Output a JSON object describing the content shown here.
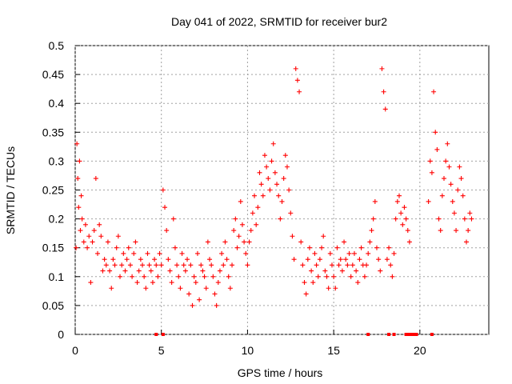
{
  "chart_data": {
    "type": "scatter",
    "title": "Day 041 of 2022, SRMTID for receiver bur2",
    "xlabel": "GPS time / hours",
    "ylabel": "SRMTID / TECUs",
    "xlim": [
      0,
      24
    ],
    "ylim": [
      0,
      0.5
    ],
    "x_ticks": [
      0,
      5,
      10,
      15,
      20
    ],
    "y_ticks": [
      0,
      0.05,
      0.1,
      0.15,
      0.2,
      0.25,
      0.3,
      0.35,
      0.4,
      0.45,
      0.5
    ],
    "x_tick_labels": [
      "0",
      "5",
      "10",
      "15",
      "20"
    ],
    "y_tick_labels": [
      "0",
      "0.05",
      "0.1",
      "0.15",
      "0.2",
      "0.25",
      "0.3",
      "0.35",
      "0.4",
      "0.45",
      "0.5"
    ],
    "grid": true,
    "series": [
      {
        "name": "SRMTID",
        "color": "#ff0000",
        "marker": "plus",
        "points": [
          [
            0.05,
            0.15
          ],
          [
            0.1,
            0.33
          ],
          [
            0.15,
            0.27
          ],
          [
            0.2,
            0.22
          ],
          [
            0.25,
            0.3
          ],
          [
            0.3,
            0.18
          ],
          [
            0.35,
            0.24
          ],
          [
            0.4,
            0.2
          ],
          [
            0.5,
            0.16
          ],
          [
            0.6,
            0.19
          ],
          [
            0.7,
            0.15
          ],
          [
            0.8,
            0.17
          ],
          [
            0.9,
            0.09
          ],
          [
            1.0,
            0.16
          ],
          [
            1.1,
            0.18
          ],
          [
            1.2,
            0.27
          ],
          [
            1.3,
            0.14
          ],
          [
            1.4,
            0.19
          ],
          [
            1.5,
            0.17
          ],
          [
            1.6,
            0.11
          ],
          [
            1.7,
            0.13
          ],
          [
            1.8,
            0.12
          ],
          [
            1.9,
            0.16
          ],
          [
            2.0,
            0.11
          ],
          [
            2.1,
            0.08
          ],
          [
            2.2,
            0.13
          ],
          [
            2.3,
            0.12
          ],
          [
            2.4,
            0.15
          ],
          [
            2.5,
            0.17
          ],
          [
            2.6,
            0.1
          ],
          [
            2.7,
            0.12
          ],
          [
            2.8,
            0.14
          ],
          [
            2.9,
            0.11
          ],
          [
            3.0,
            0.13
          ],
          [
            3.1,
            0.15
          ],
          [
            3.2,
            0.12
          ],
          [
            3.3,
            0.1
          ],
          [
            3.4,
            0.14
          ],
          [
            3.5,
            0.16
          ],
          [
            3.6,
            0.09
          ],
          [
            3.7,
            0.11
          ],
          [
            3.8,
            0.13
          ],
          [
            3.9,
            0.12
          ],
          [
            4.0,
            0.1
          ],
          [
            4.1,
            0.08
          ],
          [
            4.2,
            0.14
          ],
          [
            4.3,
            0.12
          ],
          [
            4.4,
            0.11
          ],
          [
            4.5,
            0.09
          ],
          [
            4.6,
            0.13
          ],
          [
            4.7,
            0.12
          ],
          [
            4.8,
            0.1
          ],
          [
            4.9,
            0.14
          ],
          [
            5.0,
            0.12
          ],
          [
            5.1,
            0.25
          ],
          [
            5.2,
            0.22
          ],
          [
            5.3,
            0.18
          ],
          [
            5.4,
            0.13
          ],
          [
            5.5,
            0.11
          ],
          [
            5.6,
            0.09
          ],
          [
            5.7,
            0.2
          ],
          [
            5.8,
            0.15
          ],
          [
            5.9,
            0.12
          ],
          [
            6.0,
            0.1
          ],
          [
            6.1,
            0.08
          ],
          [
            6.2,
            0.14
          ],
          [
            6.3,
            0.12
          ],
          [
            6.4,
            0.11
          ],
          [
            6.5,
            0.13
          ],
          [
            6.6,
            0.07
          ],
          [
            6.7,
            0.12
          ],
          [
            6.8,
            0.05
          ],
          [
            6.9,
            0.1
          ],
          [
            7.0,
            0.09
          ],
          [
            7.1,
            0.14
          ],
          [
            7.2,
            0.06
          ],
          [
            7.3,
            0.12
          ],
          [
            7.4,
            0.11
          ],
          [
            7.5,
            0.1
          ],
          [
            7.6,
            0.08
          ],
          [
            7.7,
            0.16
          ],
          [
            7.8,
            0.13
          ],
          [
            7.9,
            0.12
          ],
          [
            8.0,
            0.1
          ],
          [
            8.1,
            0.07
          ],
          [
            8.2,
            0.05
          ],
          [
            8.3,
            0.09
          ],
          [
            8.4,
            0.11
          ],
          [
            8.5,
            0.14
          ],
          [
            8.6,
            0.12
          ],
          [
            8.7,
            0.16
          ],
          [
            8.8,
            0.13
          ],
          [
            8.9,
            0.1
          ],
          [
            9.0,
            0.08
          ],
          [
            9.1,
            0.12
          ],
          [
            9.2,
            0.18
          ],
          [
            9.3,
            0.2
          ],
          [
            9.4,
            0.15
          ],
          [
            9.5,
            0.17
          ],
          [
            9.6,
            0.23
          ],
          [
            9.7,
            0.19
          ],
          [
            9.8,
            0.16
          ],
          [
            9.9,
            0.14
          ],
          [
            10.0,
            0.12
          ],
          [
            10.1,
            0.16
          ],
          [
            10.2,
            0.18
          ],
          [
            10.3,
            0.21
          ],
          [
            10.4,
            0.24
          ],
          [
            10.5,
            0.19
          ],
          [
            10.6,
            0.22
          ],
          [
            10.7,
            0.28
          ],
          [
            10.8,
            0.26
          ],
          [
            10.9,
            0.24
          ],
          [
            11.0,
            0.31
          ],
          [
            11.1,
            0.29
          ],
          [
            11.2,
            0.27
          ],
          [
            11.3,
            0.25
          ],
          [
            11.4,
            0.3
          ],
          [
            11.5,
            0.33
          ],
          [
            11.6,
            0.28
          ],
          [
            11.7,
            0.26
          ],
          [
            11.8,
            0.24
          ],
          [
            11.9,
            0.2
          ],
          [
            12.0,
            0.23
          ],
          [
            12.1,
            0.27
          ],
          [
            12.2,
            0.31
          ],
          [
            12.3,
            0.29
          ],
          [
            12.4,
            0.25
          ],
          [
            12.5,
            0.21
          ],
          [
            12.6,
            0.17
          ],
          [
            12.7,
            0.13
          ],
          [
            12.8,
            0.46
          ],
          [
            12.9,
            0.44
          ],
          [
            13.0,
            0.42
          ],
          [
            13.1,
            0.16
          ],
          [
            13.2,
            0.12
          ],
          [
            13.3,
            0.09
          ],
          [
            13.4,
            0.07
          ],
          [
            13.5,
            0.13
          ],
          [
            13.6,
            0.15
          ],
          [
            13.7,
            0.11
          ],
          [
            13.8,
            0.09
          ],
          [
            13.9,
            0.14
          ],
          [
            14.0,
            0.12
          ],
          [
            14.1,
            0.1
          ],
          [
            14.2,
            0.13
          ],
          [
            14.3,
            0.15
          ],
          [
            14.4,
            0.17
          ],
          [
            14.5,
            0.11
          ],
          [
            14.6,
            0.1
          ],
          [
            14.7,
            0.08
          ],
          [
            14.8,
            0.14
          ],
          [
            14.9,
            0.12
          ],
          [
            15.0,
            0.1
          ],
          [
            15.1,
            0.08
          ],
          [
            15.2,
            0.15
          ],
          [
            15.3,
            0.12
          ],
          [
            15.4,
            0.13
          ],
          [
            15.5,
            0.11
          ],
          [
            15.6,
            0.16
          ],
          [
            15.7,
            0.13
          ],
          [
            15.8,
            0.12
          ],
          [
            15.9,
            0.14
          ],
          [
            16.0,
            0.1
          ],
          [
            16.1,
            0.12
          ],
          [
            16.2,
            0.14
          ],
          [
            16.3,
            0.11
          ],
          [
            16.4,
            0.09
          ],
          [
            16.5,
            0.13
          ],
          [
            16.6,
            0.15
          ],
          [
            16.7,
            0.12
          ],
          [
            16.8,
            0.1
          ],
          [
            16.9,
            0.12
          ],
          [
            17.0,
            0.14
          ],
          [
            17.1,
            0.16
          ],
          [
            17.2,
            0.18
          ],
          [
            17.3,
            0.2
          ],
          [
            17.4,
            0.23
          ],
          [
            17.5,
            0.15
          ],
          [
            17.6,
            0.13
          ],
          [
            17.7,
            0.11
          ],
          [
            17.8,
            0.46
          ],
          [
            17.9,
            0.42
          ],
          [
            18.0,
            0.39
          ],
          [
            18.1,
            0.13
          ],
          [
            18.2,
            0.15
          ],
          [
            18.3,
            0.12
          ],
          [
            18.4,
            0.1
          ],
          [
            18.5,
            0.14
          ],
          [
            18.6,
            0.2
          ],
          [
            18.7,
            0.23
          ],
          [
            18.8,
            0.24
          ],
          [
            18.9,
            0.21
          ],
          [
            19.0,
            0.19
          ],
          [
            19.1,
            0.22
          ],
          [
            19.2,
            0.2
          ],
          [
            19.3,
            0.18
          ],
          [
            19.4,
            0.16
          ],
          [
            20.5,
            0.23
          ],
          [
            20.6,
            0.3
          ],
          [
            20.7,
            0.28
          ],
          [
            20.8,
            0.42
          ],
          [
            20.9,
            0.35
          ],
          [
            21.0,
            0.32
          ],
          [
            21.1,
            0.2
          ],
          [
            21.2,
            0.18
          ],
          [
            21.3,
            0.24
          ],
          [
            21.4,
            0.27
          ],
          [
            21.5,
            0.3
          ],
          [
            21.6,
            0.33
          ],
          [
            21.7,
            0.29
          ],
          [
            21.8,
            0.26
          ],
          [
            21.9,
            0.23
          ],
          [
            22.0,
            0.21
          ],
          [
            22.1,
            0.18
          ],
          [
            22.2,
            0.25
          ],
          [
            22.3,
            0.29
          ],
          [
            22.4,
            0.27
          ],
          [
            22.5,
            0.24
          ],
          [
            22.6,
            0.2
          ],
          [
            22.7,
            0.16
          ],
          [
            22.8,
            0.18
          ],
          [
            22.9,
            0.21
          ],
          [
            23.0,
            0.2
          ]
        ]
      }
    ],
    "baseline_markers": [
      {
        "x": 4.7
      },
      {
        "x": 5.1
      },
      {
        "x": 17.0
      },
      {
        "x": 18.2
      },
      {
        "x": 18.5
      },
      {
        "x": 19.2
      },
      {
        "x": 19.3
      },
      {
        "x": 19.4
      },
      {
        "x": 19.5
      },
      {
        "x": 19.6
      },
      {
        "x": 19.7
      },
      {
        "x": 19.8
      },
      {
        "x": 20.7
      }
    ]
  }
}
